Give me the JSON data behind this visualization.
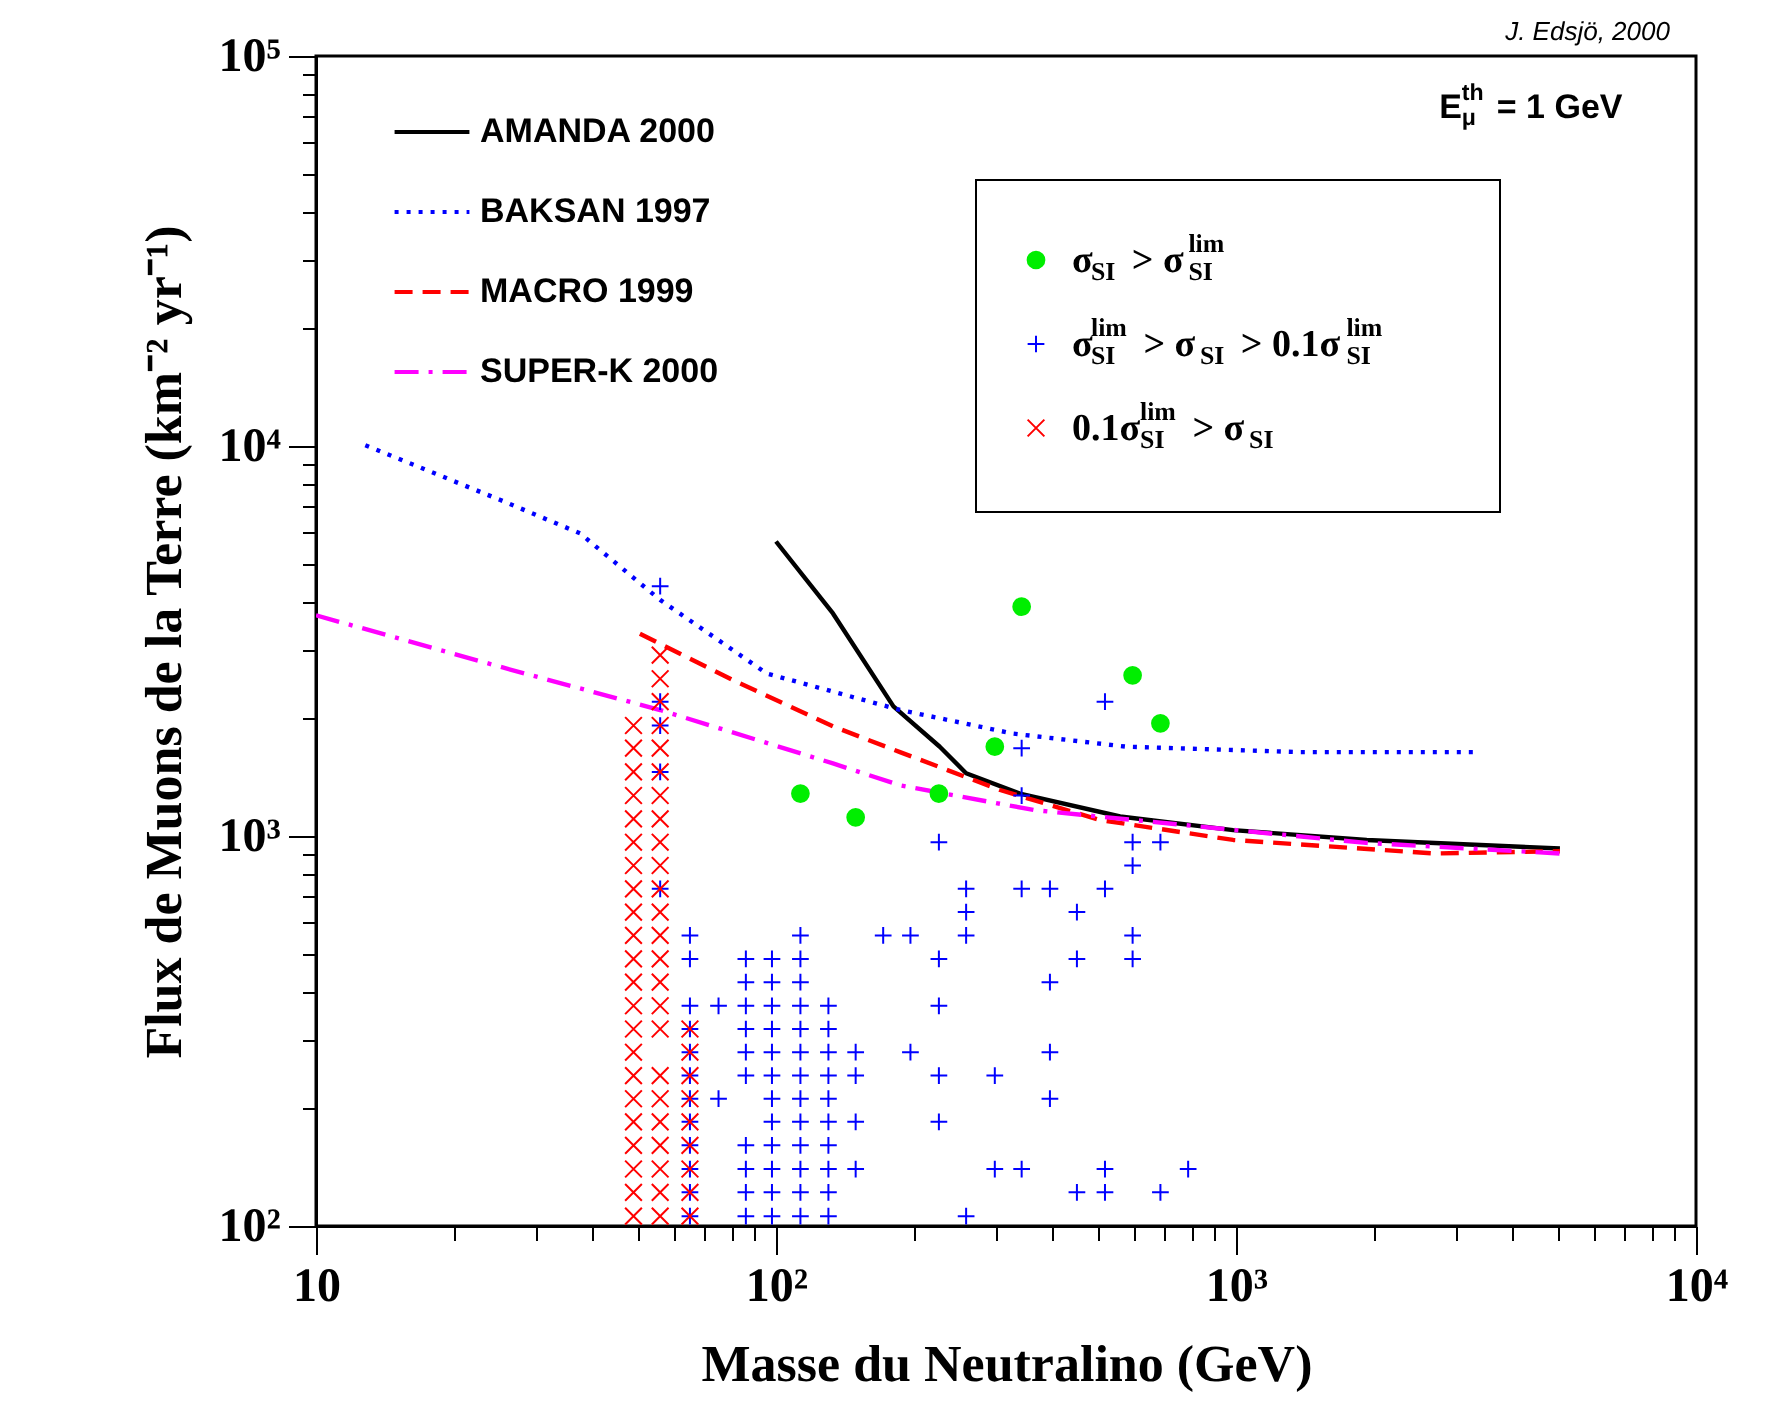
{
  "chart_data": {
    "type": "line",
    "xlabel": "Masse du Neutralino (GeV)",
    "ylabel": "Flux de Muons de la Terre (km⁻² yr⁻¹)",
    "annotations": [
      "J. Edsjö, 2000",
      "E$^{th}$$_{μ}$ = 1 GeV"
    ],
    "log": "xy",
    "grid": false,
    "legend": "top left",
    "xlim": [
      10,
      10000
    ],
    "ylim": [
      100,
      100000
    ],
    "xticks": [
      {
        "value": 10,
        "label": "10"
      },
      {
        "value": 20,
        "label": null
      },
      {
        "value": 30,
        "label": null
      },
      {
        "value": 40,
        "label": null
      },
      {
        "value": 50,
        "label": null
      },
      {
        "value": 60,
        "label": null
      },
      {
        "value": 70,
        "label": null
      },
      {
        "value": 80,
        "label": null
      },
      {
        "value": 90,
        "label": null
      },
      {
        "value": 100,
        "label": "10²"
      },
      {
        "value": 200,
        "label": null
      },
      {
        "value": 300,
        "label": null
      },
      {
        "value": 400,
        "label": null
      },
      {
        "value": 500,
        "label": null
      },
      {
        "value": 600,
        "label": null
      },
      {
        "value": 700,
        "label": null
      },
      {
        "value": 800,
        "label": null
      },
      {
        "value": 900,
        "label": null
      },
      {
        "value": 1000,
        "label": "10³"
      },
      {
        "value": 2000,
        "label": null
      },
      {
        "value": 3000,
        "label": null
      },
      {
        "value": 4000,
        "label": null
      },
      {
        "value": 5000,
        "label": null
      },
      {
        "value": 6000,
        "label": null
      },
      {
        "value": 7000,
        "label": null
      },
      {
        "value": 8000,
        "label": null
      },
      {
        "value": 9000,
        "label": null
      },
      {
        "value": 10000,
        "label": "10⁴"
      }
    ],
    "yticks": [
      {
        "value": 100,
        "label": "10²"
      },
      {
        "value": 200,
        "label": null
      },
      {
        "value": 300,
        "label": null
      },
      {
        "value": 400,
        "label": null
      },
      {
        "value": 500,
        "label": null
      },
      {
        "value": 600,
        "label": null
      },
      {
        "value": 700,
        "label": null
      },
      {
        "value": 800,
        "label": null
      },
      {
        "value": 900,
        "label": null
      },
      {
        "value": 1000,
        "label": "10³"
      },
      {
        "value": 2000,
        "label": null
      },
      {
        "value": 3000,
        "label": null
      },
      {
        "value": 4000,
        "label": null
      },
      {
        "value": 5000,
        "label": null
      },
      {
        "value": 6000,
        "label": null
      },
      {
        "value": 7000,
        "label": null
      },
      {
        "value": 8000,
        "label": null
      },
      {
        "value": 9000,
        "label": null
      },
      {
        "value": 10000,
        "label": "10⁴"
      },
      {
        "value": 20000,
        "label": null
      },
      {
        "value": 30000,
        "label": null
      },
      {
        "value": 40000,
        "label": null
      },
      {
        "value": 50000,
        "label": null
      },
      {
        "value": 60000,
        "label": null
      },
      {
        "value": 70000,
        "label": null
      },
      {
        "value": 80000,
        "label": null
      },
      {
        "value": 90000,
        "label": null
      },
      {
        "value": 100000,
        "label": "10⁵"
      }
    ],
    "series": [
      {
        "name": "AMANDA 2000",
        "type": "line",
        "color": "#000000",
        "line_style": "solid",
        "x": [
          100,
          133,
          180,
          227,
          259,
          339,
          560,
          986,
          1924,
          5060
        ],
        "values": [
          5690,
          3720,
          2150,
          1694,
          1449,
          1284,
          1122,
          1035,
          977,
          929
        ]
      },
      {
        "name": "BAKSAN 1997",
        "type": "line",
        "color": "#0000ff",
        "line_style": "dotted",
        "x": [
          12.8,
          25.1,
          37.5,
          56,
          95.5,
          186,
          328,
          578,
          1377,
          3390
        ],
        "values": [
          10040,
          7280,
          5970,
          4030,
          2610,
          2105,
          1830,
          1694,
          1641,
          1641
        ]
      },
      {
        "name": "MACRO 1999",
        "type": "line",
        "color": "#ff0000",
        "line_style": "dashed",
        "x": [
          50.6,
          80.7,
          133,
          186,
          307,
          506,
          986,
          2690,
          5060
        ],
        "values": [
          3300,
          2510,
          1910,
          1641,
          1312,
          1099,
          977,
          902,
          914
        ]
      },
      {
        "name": "SUPER-K 2000",
        "type": "line",
        "color": "#ff00ff",
        "line_style": "dashdot",
        "x": [
          10,
          25.1,
          56,
          133,
          186,
          363,
          836,
          1918,
          5060
        ],
        "values": [
          3680,
          2717,
          2104,
          1535,
          1349,
          1166,
          1057,
          960,
          902
        ]
      },
      {
        "name": "σ$_{SI}$ > σ$^{lim}$$_{SI}$",
        "type": "scatter",
        "marker": "circle",
        "color": "#00ee00",
        "x": [
          113,
          149,
          226,
          299,
          342,
          596,
          685
        ],
        "values": [
          1285,
          1117,
          1285,
          1694,
          3873,
          2582,
          1945
        ]
      },
      {
        "name": "σ$^{lim}$$_{SI}$ > σ$_{SI}$ > 0.1σ$^{lim}$$_{SI}$",
        "type": "scatter",
        "marker": "plus",
        "color": "#0000ff",
        "x": [
          56,
          56,
          56,
          56,
          56,
          65,
          65,
          65,
          65,
          65,
          65,
          65,
          65,
          65,
          65,
          65,
          65,
          75,
          75,
          86,
          86,
          86,
          86,
          86,
          86,
          86,
          86,
          86,
          86,
          98,
          98,
          98,
          98,
          98,
          98,
          98,
          98,
          98,
          98,
          98,
          98,
          113,
          113,
          113,
          113,
          113,
          113,
          113,
          113,
          113,
          113,
          113,
          113,
          113,
          130,
          130,
          130,
          130,
          130,
          130,
          130,
          130,
          130,
          130,
          149,
          149,
          149,
          149,
          171,
          196,
          196,
          226,
          226,
          226,
          226,
          226,
          259,
          259,
          259,
          259,
          299,
          299,
          342,
          342,
          342,
          342,
          394,
          394,
          394,
          394,
          451,
          451,
          451,
          519,
          519,
          519,
          519,
          596,
          596,
          596,
          596,
          685,
          685,
          787
        ],
        "values": [
          4370,
          2210,
          1920,
          1460,
          732,
          106,
          122,
          140,
          161,
          185,
          212,
          243,
          279,
          320,
          367,
          484,
          556,
          367,
          212,
          106,
          122,
          140,
          161,
          243,
          279,
          320,
          367,
          422,
          484,
          106,
          122,
          140,
          161,
          185,
          212,
          243,
          279,
          320,
          367,
          422,
          484,
          106,
          122,
          140,
          161,
          185,
          212,
          243,
          279,
          320,
          367,
          422,
          484,
          556,
          106,
          122,
          140,
          161,
          185,
          212,
          243,
          279,
          320,
          367,
          140,
          185,
          243,
          279,
          556,
          279,
          556,
          185,
          243,
          367,
          484,
          964,
          106,
          556,
          638,
          732,
          140,
          243,
          140,
          732,
          1270,
          1680,
          212,
          279,
          422,
          732,
          122,
          484,
          638,
          122,
          140,
          732,
          2210,
          484,
          556,
          840,
          964,
          122,
          964,
          140
        ]
      },
      {
        "name": "0.1σ$^{lim}$$_{SI}$ > σ$_{SI}$",
        "type": "scatter",
        "marker": "cross",
        "color": "#ff0000",
        "x": [
          49,
          49,
          49,
          49,
          49,
          49,
          49,
          49,
          49,
          49,
          49,
          49,
          49,
          49,
          49,
          49,
          49,
          49,
          49,
          49,
          49,
          49,
          56,
          56,
          56,
          56,
          56,
          56,
          56,
          56,
          56,
          56,
          56,
          56,
          56,
          56,
          56,
          56,
          56,
          56,
          56,
          56,
          56,
          56,
          56,
          56,
          65,
          65,
          65,
          65,
          65,
          65,
          65,
          65,
          65
        ],
        "values": [
          106,
          122,
          140,
          161,
          185,
          212,
          243,
          279,
          320,
          367,
          422,
          484,
          556,
          638,
          732,
          840,
          964,
          1106,
          1270,
          1460,
          1680,
          1920,
          106,
          122,
          140,
          161,
          185,
          212,
          243,
          320,
          367,
          422,
          484,
          556,
          638,
          732,
          840,
          964,
          1106,
          1270,
          1460,
          1680,
          1920,
          2210,
          2530,
          2910,
          106,
          122,
          140,
          161,
          185,
          212,
          243,
          279,
          320
        ]
      }
    ]
  }
}
